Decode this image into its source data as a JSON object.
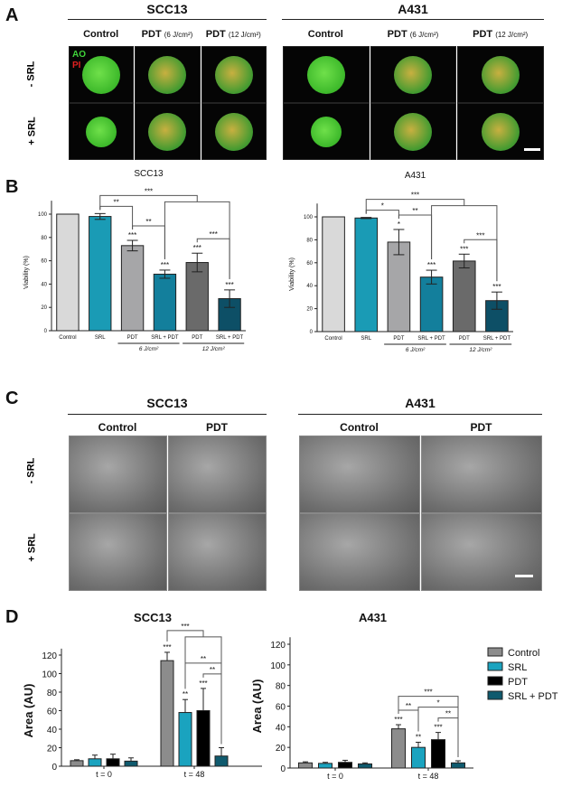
{
  "panel_a": {
    "label": "A",
    "groups": [
      "SCC13",
      "A431"
    ],
    "columns": [
      {
        "name": "Control",
        "dose": ""
      },
      {
        "name": "PDT",
        "dose": "(6 J/cm²)"
      },
      {
        "name": "PDT",
        "dose": "(12 J/cm²)"
      }
    ],
    "rows": [
      "- SRL",
      "+ SRL"
    ],
    "stain_labels": {
      "ao": "AO",
      "pi": "PI"
    },
    "stain_colors": {
      "ao": "#3fd43a",
      "pi": "#e02020"
    }
  },
  "panel_c": {
    "label": "C",
    "groups": [
      "SCC13",
      "A431"
    ],
    "columns": [
      "Control",
      "PDT"
    ],
    "rows": [
      "- SRL",
      "+ SRL"
    ]
  },
  "chart_data": [
    {
      "panel": "B",
      "type": "bar",
      "title": "SCC13",
      "ylabel": "Viability (%)",
      "ylim": [
        0,
        110
      ],
      "yticks": [
        0,
        20,
        40,
        60,
        80,
        100
      ],
      "categories": [
        "Control",
        "SRL",
        "PDT",
        "SRL + PDT",
        "PDT",
        "SRL + PDT"
      ],
      "category_groups": [
        {
          "label": "6 J/cm²",
          "from": 2,
          "to": 3
        },
        {
          "label": "12 J/cm²",
          "from": 4,
          "to": 5
        }
      ],
      "values": [
        100,
        98,
        73,
        48.5,
        58.5,
        27.5
      ],
      "errors": [
        0,
        2.5,
        4.5,
        3.5,
        8,
        7.5
      ],
      "significance": [
        "",
        "",
        "***",
        "***",
        "***",
        "***"
      ],
      "colors": [
        "#d9d9d9",
        "#1a9bb5",
        "#a6a6a8",
        "#137f9c",
        "#6a6a6a",
        "#0d4f66"
      ],
      "comparisons": [
        {
          "a": [
            1
          ],
          "b": [
            2
          ],
          "label": "**"
        },
        {
          "a": [
            2
          ],
          "b": [
            3
          ],
          "label": "**"
        },
        {
          "a": [
            4
          ],
          "b": [
            5
          ],
          "label": "***"
        },
        {
          "a": [
            1
          ],
          "b": [
            3,
            5
          ],
          "label": "***"
        }
      ],
      "grid": false
    },
    {
      "panel": "B",
      "type": "bar",
      "title": "A431",
      "ylabel": "Viability (%)",
      "ylim": [
        0,
        110
      ],
      "yticks": [
        0,
        20,
        40,
        60,
        80,
        100
      ],
      "categories": [
        "Control",
        "SRL",
        "PDT",
        "SRL + PDT",
        "PDT",
        "SRL + PDT"
      ],
      "category_groups": [
        {
          "label": "6 J/cm²",
          "from": 2,
          "to": 3
        },
        {
          "label": "12 J/cm²",
          "from": 4,
          "to": 5
        }
      ],
      "values": [
        100,
        99,
        78,
        47.5,
        61.5,
        27
      ],
      "errors": [
        0,
        0.5,
        11,
        6,
        6,
        7.5
      ],
      "significance": [
        "",
        "",
        "*",
        "***",
        "***",
        "***"
      ],
      "colors": [
        "#d9d9d9",
        "#1a9bb5",
        "#a6a6a8",
        "#137f9c",
        "#6a6a6a",
        "#0d4f66"
      ],
      "comparisons": [
        {
          "a": [
            1
          ],
          "b": [
            2
          ],
          "label": "*"
        },
        {
          "a": [
            2
          ],
          "b": [
            3
          ],
          "label": "**"
        },
        {
          "a": [
            4
          ],
          "b": [
            5
          ],
          "label": "***"
        },
        {
          "a": [
            1
          ],
          "b": [
            3,
            5
          ],
          "label": "***"
        }
      ],
      "grid": false
    },
    {
      "panel": "D",
      "type": "bar",
      "title": "SCC13",
      "ylabel": "Area (AU)",
      "ylim": [
        0,
        125
      ],
      "yticks": [
        0,
        20,
        40,
        60,
        80,
        100,
        120
      ],
      "categories": [
        "t = 0",
        "t = 48"
      ],
      "series": [
        {
          "name": "Control",
          "values": [
            6,
            114
          ],
          "errors": [
            1,
            9
          ],
          "significance": [
            "",
            "***"
          ],
          "color": "#8c8c8c"
        },
        {
          "name": "SRL",
          "values": [
            8,
            58
          ],
          "errors": [
            4,
            14
          ],
          "significance": [
            "",
            "**"
          ],
          "color": "#1aa3bf"
        },
        {
          "name": "PDT",
          "values": [
            8,
            60
          ],
          "errors": [
            5,
            24
          ],
          "significance": [
            "",
            "***"
          ],
          "color": "#000000"
        },
        {
          "name": "SRL + PDT",
          "values": [
            5.5,
            11
          ],
          "errors": [
            3.5,
            9
          ],
          "significance": [
            "",
            ""
          ],
          "color": "#0f5a6e"
        }
      ],
      "comparisons": [
        {
          "a": [
            1
          ],
          "b": [
            3
          ],
          "label": "**"
        },
        {
          "a": [
            2
          ],
          "b": [
            3
          ],
          "label": "**"
        },
        {
          "a": [
            0
          ],
          "b": [
            1,
            3
          ],
          "label": "***"
        }
      ],
      "grid": false
    },
    {
      "panel": "D",
      "type": "bar",
      "title": "A431",
      "ylabel": "Area (AU)",
      "ylim": [
        0,
        125
      ],
      "yticks": [
        0,
        20,
        40,
        60,
        80,
        100,
        120
      ],
      "categories": [
        "t = 0",
        "t = 48"
      ],
      "series": [
        {
          "name": "Control",
          "values": [
            5,
            38
          ],
          "errors": [
            1,
            4
          ],
          "significance": [
            "",
            "***"
          ],
          "color": "#8c8c8c"
        },
        {
          "name": "SRL",
          "values": [
            4.5,
            20
          ],
          "errors": [
            1,
            5
          ],
          "significance": [
            "",
            "**"
          ],
          "color": "#1aa3bf"
        },
        {
          "name": "PDT",
          "values": [
            5.5,
            27.5
          ],
          "errors": [
            2,
            7
          ],
          "significance": [
            "",
            "***"
          ],
          "color": "#000000"
        },
        {
          "name": "SRL + PDT",
          "values": [
            4,
            5
          ],
          "errors": [
            1,
            2
          ],
          "significance": [
            "",
            ""
          ],
          "color": "#0f5a6e"
        }
      ],
      "comparisons": [
        {
          "a": [
            0
          ],
          "b": [
            1
          ],
          "label": "**"
        },
        {
          "a": [
            1
          ],
          "b": [
            3
          ],
          "label": "*"
        },
        {
          "a": [
            2
          ],
          "b": [
            3
          ],
          "label": "**"
        },
        {
          "a": [
            0
          ],
          "b": [
            3
          ],
          "label": "***"
        }
      ],
      "legend": "right",
      "grid": false
    }
  ]
}
